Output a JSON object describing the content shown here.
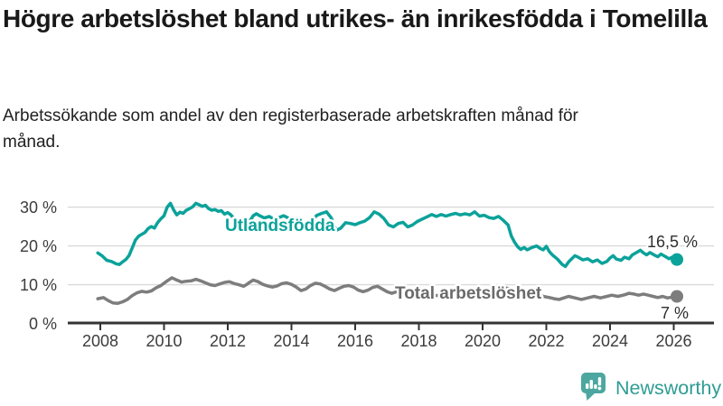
{
  "page": {
    "title": "Högre arbetslöshet bland utrikes- än inrikesfödda i Tomelilla",
    "subtitle": "Arbetssökande som andel av den registerbaserade arbetskraften månad för månad."
  },
  "branding": {
    "name": "Newsworthy",
    "icon": "bar-chart-speech-bubble-icon",
    "icon_color": "#4ba7a0",
    "text_color": "#2e9c94"
  },
  "colors": {
    "foreign_born_line": "#0ba29a",
    "total_line": "#7d7d7d",
    "total_label": "#6a6a6a",
    "gridline": "#d9d9d9",
    "axis": "#333333",
    "axis_text": "#3c3c3c",
    "end_label_text": "#2e2e2e",
    "title_text": "#191919"
  },
  "chart_data": {
    "type": "line",
    "unit": "%",
    "grid": true,
    "legend_position": "inline-labels",
    "x_axis": {
      "tick_years": [
        2008,
        2010,
        2012,
        2014,
        2016,
        2018,
        2020,
        2022,
        2024,
        2026
      ],
      "tick_labels": [
        "2008",
        "2010",
        "2012",
        "2014",
        "2016",
        "2018",
        "2020",
        "2022",
        "2024",
        "2026"
      ],
      "range": [
        2007.9,
        2026.4
      ]
    },
    "y_axis": {
      "ticks": [
        0,
        10,
        20,
        30
      ],
      "tick_labels": [
        "0 %",
        "10 %",
        "20 %",
        "30 %"
      ],
      "range": [
        0,
        32
      ]
    },
    "series": [
      {
        "id": "utlandsfodda",
        "name": "Utlandsfödda",
        "color": "#0ba29a",
        "end_label": "16,5 %",
        "end_value": 16.5,
        "points": [
          [
            2007.92,
            18.2
          ],
          [
            2008.05,
            17.5
          ],
          [
            2008.2,
            16.3
          ],
          [
            2008.35,
            16.0
          ],
          [
            2008.5,
            15.4
          ],
          [
            2008.6,
            15.2
          ],
          [
            2008.7,
            15.9
          ],
          [
            2008.8,
            16.5
          ],
          [
            2008.9,
            17.5
          ],
          [
            2009.0,
            19.5
          ],
          [
            2009.1,
            21.5
          ],
          [
            2009.2,
            22.5
          ],
          [
            2009.3,
            23.0
          ],
          [
            2009.4,
            23.5
          ],
          [
            2009.5,
            24.5
          ],
          [
            2009.6,
            25.0
          ],
          [
            2009.7,
            24.6
          ],
          [
            2009.8,
            26.0
          ],
          [
            2009.9,
            27.0
          ],
          [
            2010.0,
            27.8
          ],
          [
            2010.1,
            30.0
          ],
          [
            2010.2,
            31.0
          ],
          [
            2010.3,
            29.3
          ],
          [
            2010.4,
            28.0
          ],
          [
            2010.5,
            28.7
          ],
          [
            2010.6,
            28.4
          ],
          [
            2010.7,
            29.2
          ],
          [
            2010.8,
            29.6
          ],
          [
            2010.9,
            30.1
          ],
          [
            2011.0,
            31.0
          ],
          [
            2011.1,
            30.6
          ],
          [
            2011.2,
            30.2
          ],
          [
            2011.3,
            30.5
          ],
          [
            2011.4,
            29.6
          ],
          [
            2011.5,
            29.2
          ],
          [
            2011.6,
            29.4
          ],
          [
            2011.7,
            28.9
          ],
          [
            2011.8,
            29.1
          ],
          [
            2011.9,
            28.2
          ],
          [
            2012.0,
            28.6
          ],
          [
            2012.1,
            28.0
          ],
          [
            2012.2,
            27.0
          ],
          [
            2012.3,
            25.5
          ],
          [
            2012.45,
            23.9
          ],
          [
            2012.6,
            25.0
          ],
          [
            2012.7,
            26.5
          ],
          [
            2012.8,
            27.8
          ],
          [
            2012.9,
            28.3
          ],
          [
            2013.0,
            27.8
          ],
          [
            2013.15,
            27.2
          ],
          [
            2013.3,
            27.6
          ],
          [
            2013.45,
            26.9
          ],
          [
            2013.6,
            27.3
          ],
          [
            2013.75,
            27.8
          ],
          [
            2013.9,
            27.2
          ],
          [
            2014.05,
            26.3
          ],
          [
            2014.2,
            24.8
          ],
          [
            2014.35,
            24.1
          ],
          [
            2014.5,
            25.2
          ],
          [
            2014.65,
            26.6
          ],
          [
            2014.8,
            27.9
          ],
          [
            2014.95,
            28.4
          ],
          [
            2015.1,
            28.8
          ],
          [
            2015.25,
            27.2
          ],
          [
            2015.4,
            24.0
          ],
          [
            2015.55,
            24.6
          ],
          [
            2015.7,
            26.0
          ],
          [
            2015.85,
            25.8
          ],
          [
            2016.0,
            25.5
          ],
          [
            2016.15,
            26.0
          ],
          [
            2016.3,
            26.4
          ],
          [
            2016.45,
            27.3
          ],
          [
            2016.6,
            28.8
          ],
          [
            2016.75,
            28.2
          ],
          [
            2016.9,
            27.1
          ],
          [
            2017.05,
            25.4
          ],
          [
            2017.2,
            24.9
          ],
          [
            2017.35,
            25.8
          ],
          [
            2017.5,
            26.1
          ],
          [
            2017.65,
            24.9
          ],
          [
            2017.8,
            25.4
          ],
          [
            2017.95,
            26.3
          ],
          [
            2018.1,
            26.9
          ],
          [
            2018.25,
            27.5
          ],
          [
            2018.4,
            28.1
          ],
          [
            2018.55,
            27.6
          ],
          [
            2018.7,
            28.1
          ],
          [
            2018.85,
            27.7
          ],
          [
            2019.0,
            28.1
          ],
          [
            2019.15,
            28.4
          ],
          [
            2019.3,
            28.0
          ],
          [
            2019.45,
            28.3
          ],
          [
            2019.6,
            28.0
          ],
          [
            2019.75,
            28.8
          ],
          [
            2019.9,
            27.7
          ],
          [
            2020.05,
            27.9
          ],
          [
            2020.2,
            27.3
          ],
          [
            2020.35,
            27.1
          ],
          [
            2020.5,
            27.6
          ],
          [
            2020.65,
            26.6
          ],
          [
            2020.8,
            25.4
          ],
          [
            2020.9,
            22.6
          ],
          [
            2021.0,
            21.0
          ],
          [
            2021.1,
            19.8
          ],
          [
            2021.2,
            19.1
          ],
          [
            2021.3,
            19.6
          ],
          [
            2021.4,
            19.0
          ],
          [
            2021.55,
            19.6
          ],
          [
            2021.7,
            20.0
          ],
          [
            2021.8,
            19.4
          ],
          [
            2021.9,
            19.0
          ],
          [
            2022.0,
            19.9
          ],
          [
            2022.1,
            18.5
          ],
          [
            2022.2,
            17.6
          ],
          [
            2022.35,
            16.6
          ],
          [
            2022.5,
            15.2
          ],
          [
            2022.6,
            14.7
          ],
          [
            2022.7,
            15.9
          ],
          [
            2022.8,
            16.7
          ],
          [
            2022.9,
            17.5
          ],
          [
            2023.0,
            17.1
          ],
          [
            2023.15,
            16.4
          ],
          [
            2023.3,
            16.7
          ],
          [
            2023.45,
            15.9
          ],
          [
            2023.6,
            16.4
          ],
          [
            2023.75,
            15.5
          ],
          [
            2023.9,
            16.0
          ],
          [
            2024.0,
            16.9
          ],
          [
            2024.1,
            17.5
          ],
          [
            2024.2,
            16.6
          ],
          [
            2024.35,
            16.3
          ],
          [
            2024.45,
            17.1
          ],
          [
            2024.6,
            16.7
          ],
          [
            2024.7,
            17.7
          ],
          [
            2024.85,
            18.4
          ],
          [
            2024.95,
            18.9
          ],
          [
            2025.05,
            18.2
          ],
          [
            2025.15,
            17.7
          ],
          [
            2025.25,
            18.3
          ],
          [
            2025.4,
            17.6
          ],
          [
            2025.5,
            17.2
          ],
          [
            2025.6,
            17.9
          ],
          [
            2025.75,
            17.2
          ],
          [
            2025.85,
            16.7
          ],
          [
            2025.95,
            17.1
          ],
          [
            2026.1,
            16.5
          ]
        ]
      },
      {
        "id": "total",
        "name": "Total arbetslöshet",
        "color": "#7d7d7d",
        "end_label": "7 %",
        "end_value": 7,
        "points": [
          [
            2007.92,
            6.4
          ],
          [
            2008.1,
            6.7
          ],
          [
            2008.25,
            5.9
          ],
          [
            2008.4,
            5.3
          ],
          [
            2008.55,
            5.2
          ],
          [
            2008.7,
            5.6
          ],
          [
            2008.85,
            6.2
          ],
          [
            2009.0,
            7.2
          ],
          [
            2009.15,
            7.9
          ],
          [
            2009.3,
            8.3
          ],
          [
            2009.45,
            8.1
          ],
          [
            2009.6,
            8.4
          ],
          [
            2009.75,
            9.2
          ],
          [
            2009.9,
            9.8
          ],
          [
            2010.1,
            11.0
          ],
          [
            2010.25,
            11.8
          ],
          [
            2010.4,
            11.2
          ],
          [
            2010.55,
            10.7
          ],
          [
            2010.7,
            10.9
          ],
          [
            2010.85,
            11.0
          ],
          [
            2011.0,
            11.4
          ],
          [
            2011.15,
            11.0
          ],
          [
            2011.3,
            10.5
          ],
          [
            2011.45,
            10.0
          ],
          [
            2011.6,
            9.8
          ],
          [
            2011.75,
            10.2
          ],
          [
            2011.9,
            10.6
          ],
          [
            2012.05,
            10.8
          ],
          [
            2012.2,
            10.3
          ],
          [
            2012.35,
            10.0
          ],
          [
            2012.5,
            9.6
          ],
          [
            2012.6,
            10.1
          ],
          [
            2012.7,
            10.7
          ],
          [
            2012.8,
            11.2
          ],
          [
            2012.95,
            10.8
          ],
          [
            2013.1,
            10.1
          ],
          [
            2013.25,
            9.7
          ],
          [
            2013.4,
            9.4
          ],
          [
            2013.55,
            9.7
          ],
          [
            2013.7,
            10.3
          ],
          [
            2013.85,
            10.5
          ],
          [
            2014.0,
            10.1
          ],
          [
            2014.15,
            9.4
          ],
          [
            2014.3,
            8.5
          ],
          [
            2014.45,
            8.9
          ],
          [
            2014.6,
            9.8
          ],
          [
            2014.75,
            10.4
          ],
          [
            2014.9,
            10.2
          ],
          [
            2015.05,
            9.6
          ],
          [
            2015.2,
            8.9
          ],
          [
            2015.35,
            8.5
          ],
          [
            2015.5,
            9.1
          ],
          [
            2015.65,
            9.6
          ],
          [
            2015.8,
            9.8
          ],
          [
            2015.95,
            9.4
          ],
          [
            2016.1,
            8.6
          ],
          [
            2016.25,
            8.2
          ],
          [
            2016.4,
            8.6
          ],
          [
            2016.55,
            9.3
          ],
          [
            2016.7,
            9.6
          ],
          [
            2016.85,
            8.9
          ],
          [
            2017.0,
            8.2
          ],
          [
            2017.15,
            7.8
          ],
          [
            2017.3,
            8.2
          ],
          [
            2017.45,
            8.5
          ],
          [
            2017.6,
            8.2
          ],
          [
            2017.8,
            7.9
          ],
          [
            2018.0,
            7.7
          ],
          [
            2018.3,
            7.4
          ],
          [
            2018.6,
            7.2
          ],
          [
            2018.9,
            7.1
          ],
          [
            2019.2,
            7.0
          ],
          [
            2019.5,
            7.2
          ],
          [
            2019.8,
            7.5
          ],
          [
            2020.1,
            8.3
          ],
          [
            2020.4,
            9.1
          ],
          [
            2020.7,
            9.2
          ],
          [
            2021.0,
            8.7
          ],
          [
            2021.3,
            8.1
          ],
          [
            2021.6,
            7.5
          ],
          [
            2021.9,
            7.0
          ],
          [
            2022.1,
            6.7
          ],
          [
            2022.25,
            6.4
          ],
          [
            2022.4,
            6.2
          ],
          [
            2022.55,
            6.6
          ],
          [
            2022.7,
            7.0
          ],
          [
            2022.9,
            6.6
          ],
          [
            2023.1,
            6.2
          ],
          [
            2023.3,
            6.6
          ],
          [
            2023.5,
            7.0
          ],
          [
            2023.7,
            6.6
          ],
          [
            2023.9,
            7.0
          ],
          [
            2024.05,
            7.3
          ],
          [
            2024.25,
            7.0
          ],
          [
            2024.45,
            7.4
          ],
          [
            2024.6,
            7.8
          ],
          [
            2024.75,
            7.6
          ],
          [
            2024.9,
            7.3
          ],
          [
            2025.05,
            7.6
          ],
          [
            2025.2,
            7.3
          ],
          [
            2025.35,
            7.0
          ],
          [
            2025.5,
            6.7
          ],
          [
            2025.65,
            7.0
          ],
          [
            2025.8,
            6.6
          ],
          [
            2025.95,
            6.8
          ],
          [
            2026.1,
            7.0
          ]
        ]
      }
    ]
  }
}
